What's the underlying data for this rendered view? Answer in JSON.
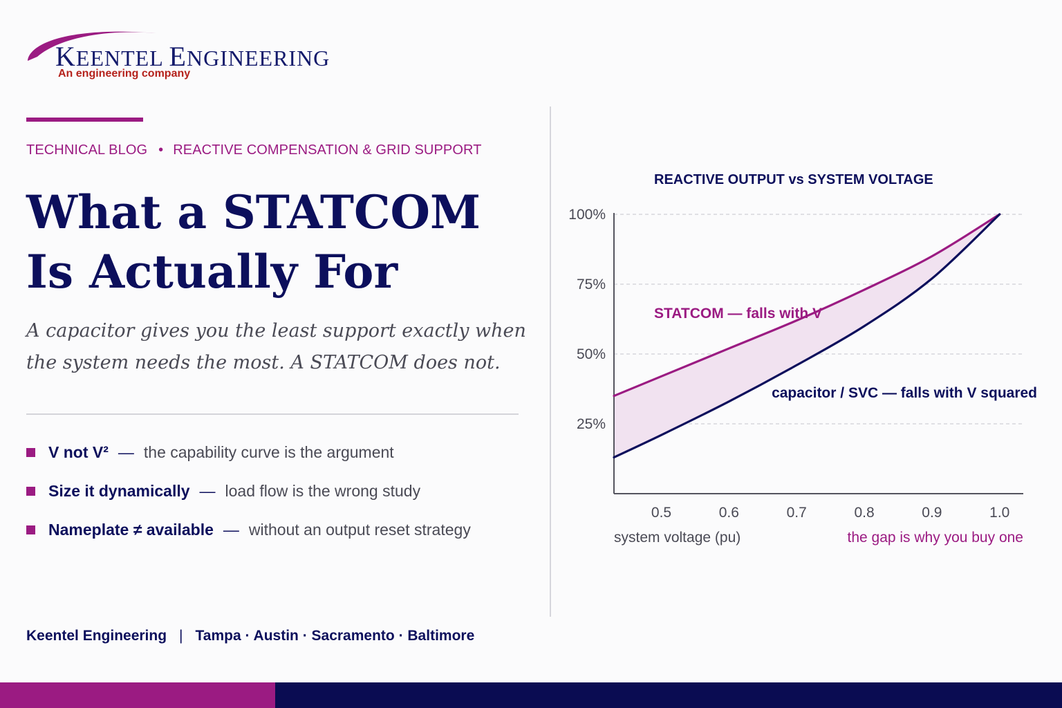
{
  "brand": {
    "name_parts": [
      "K",
      "EENTEL ",
      "E",
      "NGINEERING"
    ],
    "tagline": "An engineering company"
  },
  "colors": {
    "accent": "#9b1b82",
    "navy": "#0c0f5c",
    "text_gray": "#4a4a55",
    "band_purple": "#9b1b82",
    "band_navy": "#0a0c52",
    "fill_gap": "#f1e2f0"
  },
  "category": {
    "primary": "TECHNICAL BLOG",
    "separator": "•",
    "secondary": "REACTIVE COMPENSATION & GRID SUPPORT"
  },
  "headline": "What a STATCOM Is Actually For",
  "subhead": "A capacitor gives you the least support exactly when the system needs the most. A STATCOM does not.",
  "bullets": [
    {
      "term": "V not V²",
      "dash": "—",
      "desc": "the capability curve is the argument"
    },
    {
      "term": "Size it dynamically",
      "dash": "—",
      "desc": "load flow is the wrong study"
    },
    {
      "term": "Nameplate ≠ available",
      "dash": "—",
      "desc": "without an output reset strategy"
    }
  ],
  "footer": {
    "company": "Keentel Engineering",
    "separator": "|",
    "locations": "Tampa · Austin · Sacramento · Baltimore"
  },
  "chart_data": {
    "type": "line",
    "title": "REACTIVE OUTPUT vs SYSTEM VOLTAGE",
    "xlabel": "system voltage (pu)",
    "ylabel": "",
    "xlim": [
      0.43,
      1.035
    ],
    "ylim": [
      0,
      1.0
    ],
    "x_ticks": [
      0.5,
      0.6,
      0.7,
      0.8,
      0.9,
      1.0
    ],
    "x_tick_labels": [
      "0.5",
      "0.6",
      "0.7",
      "0.8",
      "0.9",
      "1.0"
    ],
    "y_ticks": [
      0.25,
      0.5,
      0.75,
      1.0
    ],
    "y_tick_labels": [
      "25%",
      "50%",
      "75%",
      "100%"
    ],
    "grid": "horizontal dashed",
    "series": [
      {
        "name": "STATCOM — falls with V",
        "color": "#9b1b82",
        "x": [
          0.43,
          0.5,
          0.6,
          0.7,
          0.8,
          0.9,
          1.0
        ],
        "y": [
          0.35,
          0.42,
          0.52,
          0.62,
          0.73,
          0.85,
          1.0
        ]
      },
      {
        "name": "capacitor / SVC — falls with V squared",
        "color": "#0c0f5c",
        "x": [
          0.43,
          0.5,
          0.6,
          0.7,
          0.8,
          0.9,
          1.0
        ],
        "y": [
          0.13,
          0.21,
          0.33,
          0.46,
          0.6,
          0.77,
          1.0
        ]
      }
    ],
    "annotation": "the gap is why you buy one"
  }
}
